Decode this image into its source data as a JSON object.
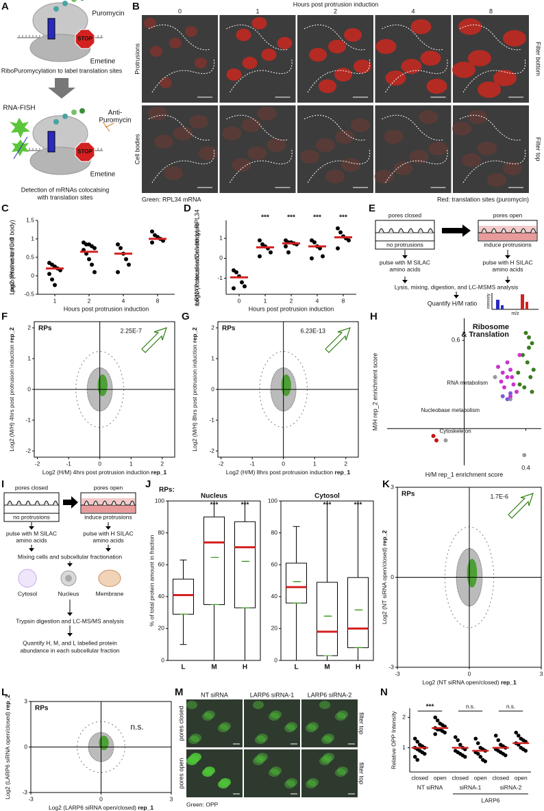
{
  "A": {
    "letter": "A",
    "puromycin": "Puromycin",
    "stop1": "STOP",
    "emetine1": "Emetine",
    "caption1": "RiboPuromycylation to label translation sites",
    "rnafish": "RNA-FISH",
    "anti": [
      "Anti-",
      "Puromycin"
    ],
    "stop2": "STOP",
    "emetine2": "Emetine",
    "caption2": [
      "Detection of mRNAs colocalsing",
      "with translation sites"
    ]
  },
  "B": {
    "letter": "B",
    "title": "Hours post protrusion induction",
    "columns": [
      "0",
      "1",
      "2",
      "4",
      "8"
    ],
    "rows": [
      "Protrusions",
      "Cell bodies"
    ],
    "right": [
      "Filter bottom",
      "Filter top"
    ],
    "green": "Green: RPL34 mRNA",
    "red": "Red: translation sites (puromycin)"
  },
  "C": {
    "letter": "C",
    "ylabel": [
      "Log2 (Protrusion/Cell body)",
      "puro relative to t = 0"
    ],
    "xlabel": "Hours post protrusion induction",
    "categories": [
      "1",
      "2",
      "4",
      "8"
    ],
    "ylim": [
      -0.5,
      1.5
    ],
    "yticks": [
      -0.5,
      0,
      0.5,
      1,
      1.5
    ],
    "points": [
      [
        0.35,
        0.3,
        0.25,
        0.2,
        0.15,
        0.05,
        -0.1,
        -0.25
      ],
      [
        0.9,
        0.85,
        0.85,
        0.8,
        0.75,
        0.7,
        0.6,
        0.45,
        0.3,
        0.1
      ],
      [
        0.85,
        0.75,
        0.6,
        0.45,
        0.3,
        0.1
      ],
      [
        1.2,
        1.1,
        1.05,
        1.0,
        0.95,
        0.9
      ]
    ],
    "medians": [
      0.2,
      0.65,
      0.6,
      1.0
    ]
  },
  "D": {
    "letter": "D",
    "ylabel": [
      "Log2 (Protrusion/Cell-body) RPL34",
      "mRNA colocalisation with puro"
    ],
    "xlabel": "Hours post protrusion induction",
    "categories": [
      "0",
      "1",
      "2",
      "4",
      "8"
    ],
    "ylim": [
      -1.8,
      1.9
    ],
    "yticks": [
      -1,
      0,
      1
    ],
    "points": [
      [
        -0.6,
        -0.7,
        -0.9,
        -1.2,
        -1.4,
        -1.5
      ],
      [
        0.9,
        0.7,
        0.6,
        0.5,
        0.3,
        0.1
      ],
      [
        0.9,
        0.8,
        0.8,
        0.75,
        0.7,
        0.6,
        0.3
      ],
      [
        0.9,
        0.8,
        0.6,
        0.5,
        0.1,
        0.0
      ],
      [
        1.5,
        1.3,
        1.1,
        1.0,
        0.9,
        0.5
      ]
    ],
    "medians": [
      -0.95,
      0.55,
      0.75,
      0.6,
      1.05
    ],
    "stars": [
      null,
      "***",
      "***",
      "***",
      "***"
    ]
  },
  "E": {
    "letter": "E",
    "closed": "pores closed",
    "open": "pores open",
    "noprot": "no protrusions",
    "induce": "induce protrusions",
    "pulse_m": [
      "pulse with M SILAC",
      "amino acids"
    ],
    "pulse_h": [
      "pulse with H SILAC",
      "amino acids"
    ],
    "lysis": "Lysis, mixing, digestion, and LC-MSMS analysis",
    "quantify": "Quantify H/M ratio",
    "intensity": "intensity",
    "mz": "m/z"
  },
  "F": {
    "letter": "F",
    "rps": "RPs",
    "pvalue": "2.25E-7",
    "xlabel": "Log2 (H/M) 4hrs post protrusion induction ",
    "xlabel_rep": "rep_1",
    "ylabel": "Log2 (M/H) 4hrs post protrusion induction ",
    "ylabel_rep": "rep_2",
    "xlim": [
      -2.1,
      2.4
    ],
    "ylim": [
      -2.2,
      2.2
    ],
    "xticks": [
      -2,
      -1,
      0,
      1,
      2
    ],
    "yticks": [
      -2,
      -1,
      0,
      1,
      2
    ]
  },
  "G": {
    "letter": "G",
    "rps": "RPs",
    "pvalue": "6.23E-13",
    "xlabel": "Log2 (H/M) 8hrs post protrusion induction ",
    "xlabel_rep": "rep_1",
    "ylabel": "Log2 (M/H) 8hrs post protrusion induction ",
    "ylabel_rep": "rep_2",
    "xlim": [
      -2.1,
      2.4
    ],
    "ylim": [
      -2.2,
      2.2
    ],
    "xticks": [
      -2,
      -1,
      0,
      1,
      2
    ],
    "yticks": [
      -2,
      -1,
      0,
      1,
      2
    ]
  },
  "H": {
    "letter": "H",
    "xlabel": "H/M rep_1 enrichment score",
    "ylabel": "M/H rep_2 enrichment score",
    "xlim": [
      -0.5,
      0.5
    ],
    "ylim": [
      -0.25,
      0.75
    ],
    "xticks": [
      0.4
    ],
    "yticks": [
      0.6
    ],
    "groups": [
      {
        "name": [
          "Ribosome",
          "& Translation"
        ],
        "color": "#3a7d1e",
        "x": [
          0.4,
          0.42,
          0.44,
          0.38,
          0.41,
          0.45,
          0.43,
          0.36,
          0.39,
          0.44,
          0.35,
          0.42
        ],
        "y": [
          0.65,
          0.62,
          0.58,
          0.5,
          0.45,
          0.4,
          0.35,
          0.3,
          0.28,
          0.25,
          0.38,
          0.55
        ]
      },
      {
        "name": [
          "RNA metabolism"
        ],
        "color": "#cc33cc",
        "x": [
          0.22,
          0.25,
          0.28,
          0.3,
          0.32,
          0.26,
          0.3,
          0.34,
          0.24,
          0.28,
          0.36,
          0.31
        ],
        "y": [
          0.42,
          0.38,
          0.35,
          0.4,
          0.3,
          0.28,
          0.22,
          0.25,
          0.32,
          0.45,
          0.5,
          0.35
        ]
      },
      {
        "name": [
          "Nucleobase metabolism"
        ],
        "color": "#7b5cd6",
        "x": [
          0.25,
          0.28,
          0.3
        ],
        "y": [
          0.22,
          0.2,
          0.24
        ]
      },
      {
        "name": [
          "Cytoskeleton"
        ],
        "color": "#cc1111",
        "x": [
          -0.2,
          -0.18
        ],
        "y": [
          -0.05,
          -0.08
        ]
      }
    ],
    "other": {
      "color": "#999999",
      "x": [
        0.2,
        0.3,
        0.39,
        -0.12
      ],
      "y": [
        0.35,
        0.2,
        -0.18,
        -0.08
      ]
    }
  },
  "I": {
    "letter": "I",
    "closed": "pores closed",
    "open": "pores open",
    "noprot": "no protrusions",
    "induce": "induce protrusions",
    "pulse_m": [
      "pulse with M SILAC",
      "amino acids"
    ],
    "pulse_h": [
      "pulse with H SILAC",
      "amino acids"
    ],
    "mixing": "Mixing cells and subcellular fractionation",
    "fractions": [
      "Cytosol",
      "Nucleus",
      "Membrane"
    ],
    "trypsin": "Trypsin digestion and LC-MS/MS analysis",
    "quantify": [
      "Quantify H, M, and L labelled protein",
      "abundance in each subcellular fraction"
    ]
  },
  "J": {
    "letter": "J",
    "rps": "RPs:",
    "ylabel": "% of total protein amount in fraction",
    "ylim": [
      0,
      100
    ],
    "yticks": [
      0,
      20,
      40,
      60,
      80,
      100
    ],
    "category_colors": [
      "#000000",
      "#2222cc",
      "#cc1111"
    ],
    "panels": [
      {
        "title": "Nucleus",
        "categories": [
          "L",
          "M",
          "H"
        ],
        "low": [
          10,
          0,
          0
        ],
        "q1": [
          29,
          35,
          33
        ],
        "median": [
          41,
          74,
          71
        ],
        "q3": [
          51,
          90,
          87
        ],
        "high": [
          63,
          100,
          100
        ],
        "stars": [
          null,
          "***",
          "***"
        ]
      },
      {
        "title": "Cytosol",
        "categories": [
          "L",
          "M",
          "H"
        ],
        "low": [
          0,
          0,
          0
        ],
        "q1": [
          36,
          3,
          8
        ],
        "median": [
          46,
          18,
          20
        ],
        "q3": [
          61,
          49,
          52
        ],
        "high": [
          84,
          100,
          100
        ],
        "stars": [
          null,
          "***",
          "***"
        ]
      }
    ]
  },
  "K": {
    "letter": "K",
    "rps": "RPs",
    "pvalue": "1.7E-6",
    "xlabel": "Log2 (NT siRNA open/closed) ",
    "xlabel_rep": "rep_1",
    "ylabel": "Log2 (NT siRNA open/closed) ",
    "ylabel_rep": "rep_2",
    "xlim": [
      -3,
      3
    ],
    "ylim": [
      -3,
      3
    ],
    "xticks": [
      -3,
      0,
      3
    ],
    "yticks": [
      -3,
      0,
      3
    ]
  },
  "L": {
    "letter": "L",
    "rps": "RPs",
    "ns": "n.s.",
    "xlabel": "Log2 (LARP6 siRNA open/closed) ",
    "xlabel_rep": "rep_1",
    "ylabel": "Log2 (LARP6 siRNA open/closed) ",
    "ylabel_rep": "rep_2",
    "xlim": [
      -3,
      3
    ],
    "ylim": [
      -3,
      3
    ],
    "xticks": [
      -3,
      0,
      3
    ],
    "yticks": [
      -3,
      0,
      3
    ]
  },
  "M": {
    "letter": "M",
    "columns": [
      "NT siRNA",
      "LARP6 siRNA-1",
      "LARP6 siRNA-2"
    ],
    "rows": [
      "pores closed",
      "pores open"
    ],
    "right": [
      "filter top",
      "filter top"
    ],
    "caption": "Green: OPP"
  },
  "N": {
    "letter": "N",
    "ylabel": "Relative OPP Intensity",
    "ylim": [
      0.2,
      2.3
    ],
    "yticks": [
      1,
      2
    ],
    "categories": [
      "closed",
      "open",
      "closed",
      "open",
      "closed",
      "open"
    ],
    "groups": [
      "NT siRNA",
      "siRNA-1",
      "siRNA-2"
    ],
    "supergroup": "LARP6",
    "stars": [
      "***",
      "n.s.",
      "n.s."
    ],
    "points": [
      [
        1.3,
        1.2,
        1.1,
        1.05,
        1.0,
        1.0,
        0.95,
        0.9,
        0.85,
        0.8,
        0.7,
        0.6
      ],
      [
        2.0,
        1.9,
        1.8,
        1.75,
        1.7,
        1.65,
        1.6,
        1.6,
        1.55,
        1.5,
        1.45
      ],
      [
        1.35,
        1.25,
        1.1,
        1.0,
        0.95,
        0.9,
        0.85,
        0.8,
        0.75,
        0.7
      ],
      [
        1.3,
        1.15,
        1.0,
        0.95,
        0.9,
        0.85,
        0.8,
        0.7,
        0.6,
        0.55
      ],
      [
        1.4,
        1.25,
        1.1,
        1.05,
        1.0,
        0.95,
        0.9,
        0.85,
        0.8,
        0.75
      ],
      [
        1.5,
        1.4,
        1.3,
        1.25,
        1.2,
        1.15,
        1.1,
        1.0,
        0.95,
        0.9
      ]
    ],
    "medians": [
      1.0,
      1.65,
      1.0,
      0.9,
      1.0,
      1.15
    ]
  }
}
